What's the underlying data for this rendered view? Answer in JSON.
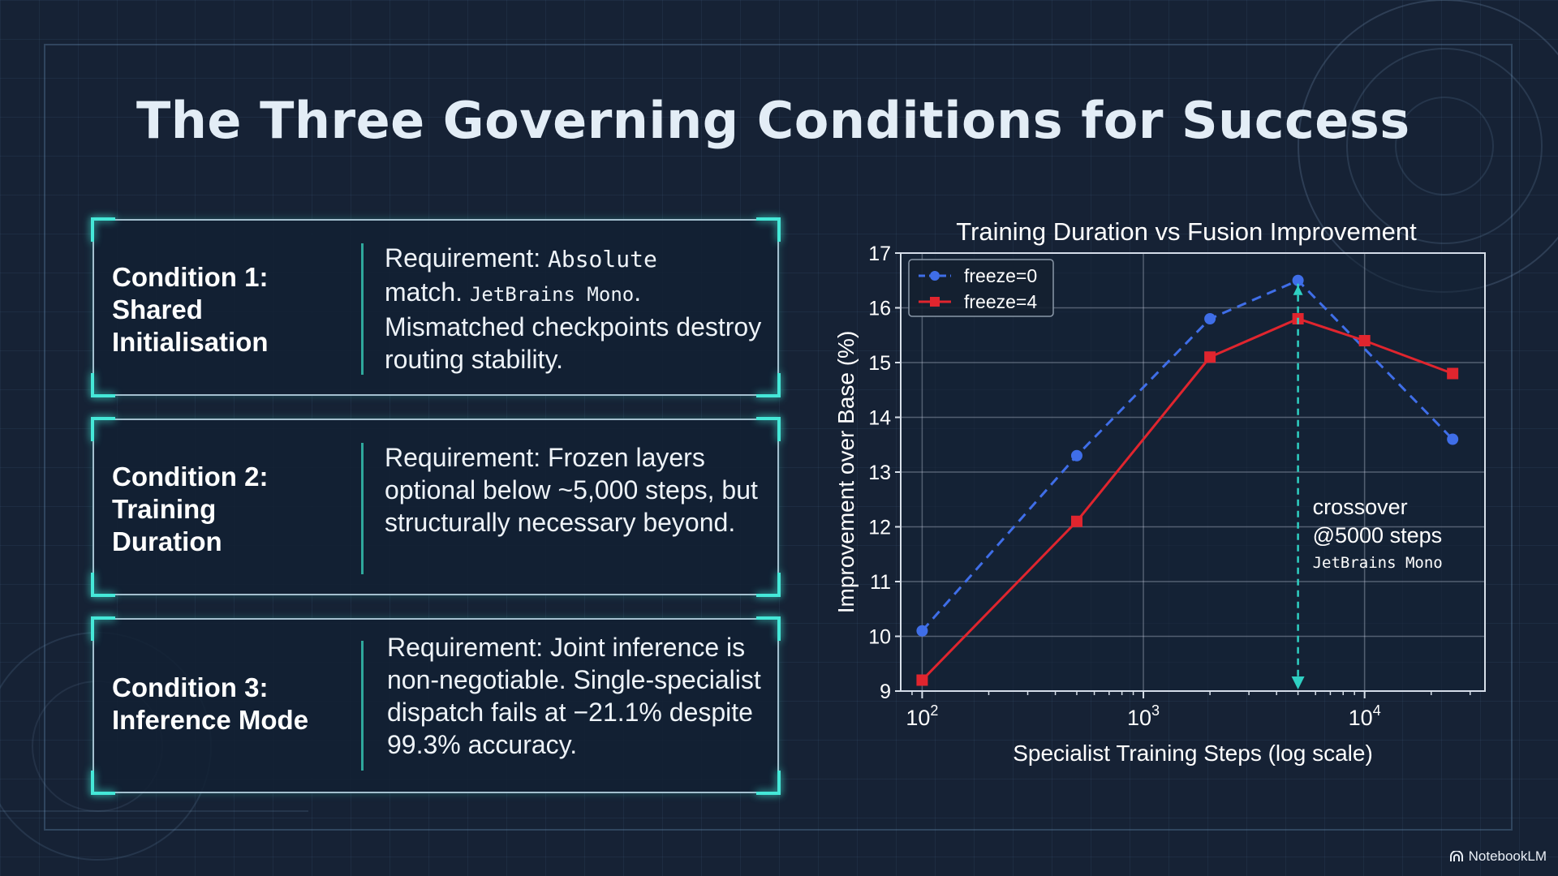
{
  "slide": {
    "title": "The Three Governing Conditions for Success",
    "colors": {
      "background": "#162235",
      "accent_cyan": "#45e8d8",
      "series_blue": "#3f6ee8",
      "series_red": "#e0252e"
    }
  },
  "conditions": [
    {
      "title_lines": [
        "Condition 1:",
        "Shared",
        "Initialisation"
      ],
      "text_parts": [
        "Requirement: ",
        "Absolute",
        "match. ",
        "JetBrains Mono",
        ". Mismatched checkpoints destroy routing stability."
      ]
    },
    {
      "title_lines": [
        "Condition 2:",
        "Training",
        "Duration"
      ],
      "text": "Requirement: Frozen layers optional below ~5,000 steps, but structurally necessary beyond."
    },
    {
      "title_lines": [
        "Condition 3:",
        "Inference Mode"
      ],
      "text": "Requirement: Joint inference is non-negotiable. Single-specialist dispatch fails at −21.1% despite 99.3% accuracy."
    }
  ],
  "chart_data": {
    "type": "line",
    "title": "Training Duration vs Fusion Improvement",
    "xlabel": "Specialist Training Steps (log scale)",
    "ylabel": "Improvement over Base (%)",
    "x_scale": "log",
    "xlim": [
      80,
      35000
    ],
    "ylim": [
      9,
      17
    ],
    "x_ticks": [
      100,
      1000,
      10000
    ],
    "x_tick_labels": [
      [
        "10",
        "2"
      ],
      [
        "10",
        "3"
      ],
      [
        "10",
        "4"
      ]
    ],
    "y_ticks": [
      9,
      10,
      11,
      12,
      13,
      14,
      15,
      16,
      17
    ],
    "grid": true,
    "legend_position": "top-left",
    "series": [
      {
        "name": "freeze=0",
        "color": "#3f6ee8",
        "dashed": true,
        "marker": "circle",
        "x": [
          100,
          500,
          2000,
          5000,
          25000
        ],
        "y": [
          10.1,
          13.3,
          15.8,
          16.5,
          13.6
        ]
      },
      {
        "name": "freeze=4",
        "color": "#e0252e",
        "dashed": false,
        "marker": "square",
        "x": [
          100,
          500,
          2000,
          5000,
          10000,
          25000
        ],
        "y": [
          9.2,
          12.1,
          15.1,
          15.8,
          15.4,
          14.8
        ]
      }
    ],
    "annotation": {
      "x": 5000,
      "lines": [
        "crossover",
        "@5000 steps",
        "JetBrains Mono"
      ],
      "color": "#2fd0c3"
    }
  },
  "footer": {
    "brand": "NotebookLM"
  }
}
